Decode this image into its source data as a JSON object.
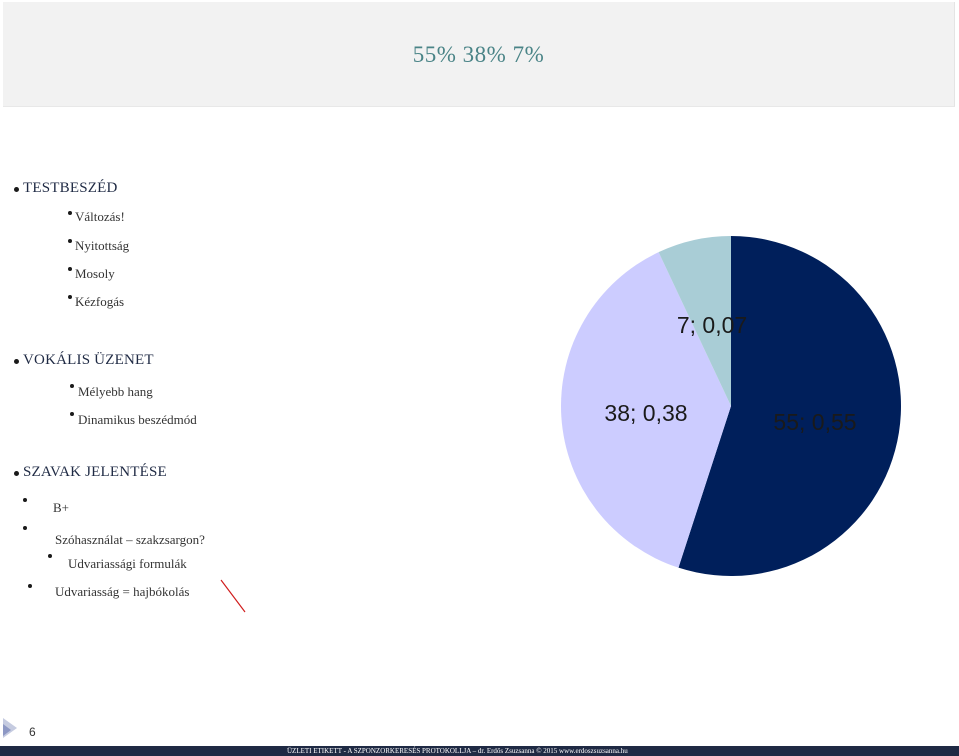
{
  "slide_title": "55%  38%  7%",
  "sections": [
    {
      "heading": "TESTBESZÉD",
      "items": [
        "Változás!",
        "Nyitottság",
        "Mosoly",
        "Kézfogás"
      ]
    },
    {
      "heading": "VOKÁLIS ÜZENET",
      "items": [
        "Mélyebb hang",
        "Dinamikus beszédmód"
      ]
    },
    {
      "heading": "SZAVAK JELENTÉSE",
      "items": [
        "B+",
        "Szóhasználat – szakzsargon?",
        "Udvariassági formulák",
        "Udvariasság = hajbókolás"
      ]
    }
  ],
  "chart_data": {
    "type": "pie",
    "slices": [
      {
        "value": 55,
        "label": "55; 0,55",
        "color": "#001f5b"
      },
      {
        "value": 38,
        "label": "38; 0,38",
        "color": "#ccccff"
      },
      {
        "value": 7,
        "label": "7; 0,07",
        "color": "#a9cdd6"
      }
    ]
  },
  "page_number": "6",
  "footer": "ÜZLETI ETIKETT - A SZPONZORKERESÉS PROTOKOLLJA – dr. Erdős Zsuzsanna © 2015 www.erdoszsuzsanna.hu"
}
